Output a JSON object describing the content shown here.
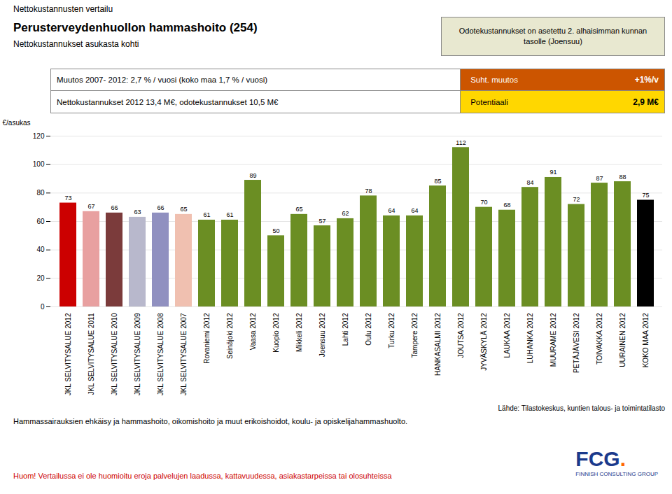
{
  "chart_data": {
    "type": "bar",
    "title": "Perusterveydenhuollon hammashoito (254)",
    "subtitle": "Nettokustannukset asukasta kohti",
    "ylabel": "€/asukas",
    "categories": [
      "JKL SELVITYSALUE 2012",
      "JKL SELVITYSALUE 2011",
      "JKL SELVITYSALUE 2010",
      "JKL SELVITYSALUE 2009",
      "JKL SELVITYSALUE 2008",
      "JKL SELVITYSALUE 2007",
      "Rovaniemi 2012",
      "Seinäjoki 2012",
      "Vaasa 2012",
      "Kuopio 2012",
      "Mikkeli 2012",
      "Joensuu 2012",
      "Lahti 2012",
      "Oulu 2012",
      "Turku 2012",
      "Tampere 2012",
      "HANKASALMI 2012",
      "JOUTSA 2012",
      "JYVÄSKYLÄ 2012",
      "LAUKAA 2012",
      "LUHANKA 2012",
      "MUURAME 2012",
      "PETÄJÄVESI 2012",
      "TOIVAKKA 2012",
      "UURAINEN 2012",
      "KOKO MAA 2012"
    ],
    "values": [
      73,
      67,
      66,
      63,
      66,
      65,
      61,
      61,
      89,
      50,
      65,
      57,
      62,
      78,
      64,
      64,
      85,
      112,
      70,
      68,
      84,
      91,
      72,
      87,
      88,
      75
    ],
    "colors": [
      "#CC0000",
      "#E8A0A0",
      "#7B3B3B",
      "#B8B8CC",
      "#9090C0",
      "#F0C0B0",
      "#6B8E23",
      "#6B8E23",
      "#6B8E23",
      "#6B8E23",
      "#6B8E23",
      "#6B8E23",
      "#6B8E23",
      "#6B8E23",
      "#6B8E23",
      "#6B8E23",
      "#6B8E23",
      "#6B8E23",
      "#6B8E23",
      "#6B8E23",
      "#6B8E23",
      "#6B8E23",
      "#6B8E23",
      "#6B8E23",
      "#6B8E23",
      "#000000"
    ],
    "ylim": [
      0,
      120
    ],
    "yticks": [
      0,
      20,
      40,
      60,
      80,
      100,
      120
    ],
    "grid": true,
    "data_labels": true,
    "annotations": [
      {
        "text": "Nettokustannusten vertailu"
      },
      {
        "text": "Odotekustannukset on asetettu 2. alhaisimman kunnan\ntasolle (Joensuu)",
        "color": "#E8E8D0"
      },
      {
        "text": "Muutos 2007- 2012: 2,7 % / vuosi (koko maa 1,7 % / vuosi)"
      },
      {
        "text": "Nettokustannukset 2012 13,4 M€, odotekustannukset 10,5 M€"
      },
      {
        "text": "Suht. muutos",
        "color": "#CC5500"
      },
      {
        "text": "+1%/v"
      },
      {
        "text": "Potentiaali",
        "color": "#FFD700"
      },
      {
        "text": "2,9 M€"
      },
      {
        "text": "Lähde: Tilastokeskus, kuntien talous- ja toimintatilasto"
      },
      {
        "text": "Hammassairauksien ehkäisy ja hammashoito, oikomishoito ja muut erikoishoidot, koulu- ja opiskelijahammashuolto."
      },
      {
        "text": "Huom! Vertailussa ei ole huomioitu eroja palvelujen laadussa, kattavuudessa, asiakastarpeissa tai olosuhteissa",
        "color": "#CC0000"
      },
      {
        "text": "FCG",
        "color": "#1B3A8C"
      },
      {
        "text": ".",
        "color": "#FF6600"
      },
      {
        "text": "FINNISH CONSULTING GROUP",
        "color": "#1B3A8C"
      }
    ]
  }
}
